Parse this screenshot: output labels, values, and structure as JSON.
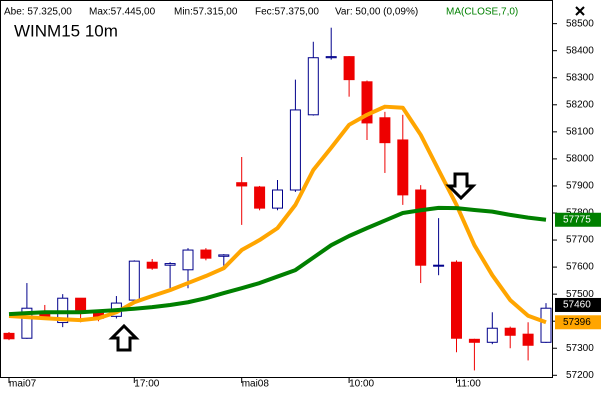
{
  "chart_data": {
    "type": "candlestick",
    "title": "WINM15 10m",
    "info": [
      "Abe: 57.325,00",
      "Max:57.445,00",
      "Min:57.315,00",
      "Fec:57.375,00",
      "Var: 50,00 (0,09%)"
    ],
    "categories": [
      "mai07",
      null,
      null,
      null,
      null,
      null,
      null,
      "17:00",
      null,
      null,
      null,
      null,
      null,
      "mai08",
      null,
      null,
      null,
      null,
      null,
      "10:00",
      null,
      null,
      null,
      null,
      null,
      "11:00",
      null,
      null,
      null,
      null,
      null
    ],
    "open": [
      57355,
      57337,
      57433,
      57395,
      57485,
      57430,
      57418,
      57478,
      57618,
      57607,
      57590,
      57663,
      57640,
      57912,
      57896,
      57818,
      57885,
      58163,
      58374,
      58378,
      58285,
      58152,
      58070,
      57885,
      57607,
      57618,
      57333,
      57322,
      57374,
      57352,
      57322
    ],
    "high": [
      57360,
      57541,
      57460,
      57500,
      57485,
      57440,
      57493,
      57625,
      57630,
      57618,
      57670,
      57670,
      57648,
      58007,
      57900,
      57922,
      58293,
      58433,
      58485,
      58380,
      58290,
      58174,
      58163,
      57903,
      57781,
      57625,
      57335,
      57433,
      57380,
      57396,
      57467
    ],
    "low": [
      57330,
      57335,
      57405,
      57378,
      57396,
      57400,
      57410,
      57470,
      57590,
      57515,
      57522,
      57625,
      57590,
      57756,
      57810,
      57810,
      57878,
      58160,
      58367,
      58230,
      58070,
      57948,
      57830,
      57541,
      57570,
      57285,
      57218,
      57315,
      57300,
      57255,
      57320
    ],
    "close": [
      57335,
      57448,
      57418,
      57485,
      57430,
      57411,
      57467,
      57622,
      57596,
      57613,
      57663,
      57633,
      57645,
      57900,
      57818,
      57885,
      58181,
      58374,
      58378,
      58293,
      58133,
      58060,
      57867,
      57607,
      57607,
      57337,
      57322,
      57374,
      57348,
      57311,
      57448
    ],
    "up_color": "#00008b",
    "down_color": "#ee0000",
    "lines": [
      {
        "color": "#ffa500",
        "values": [
          57419,
          57415,
          57411,
          57407,
          57404,
          57411,
          57433,
          57470,
          57493,
          57515,
          57541,
          57567,
          57596,
          57663,
          57700,
          57744,
          57830,
          57959,
          58041,
          58126,
          58163,
          58193,
          58189,
          58089,
          57959,
          57830,
          57681,
          57570,
          57478,
          57420,
          57396
        ]
      },
      {
        "name": "MA(CLOSE,7,0)",
        "color": "#008000",
        "values": [
          57426,
          57430,
          57433,
          57433,
          57433,
          57437,
          57441,
          57446,
          57452,
          57460,
          57470,
          57485,
          57504,
          57522,
          57541,
          57565,
          57589,
          57635,
          57681,
          57715,
          57744,
          57772,
          57800,
          57810,
          57819,
          57818,
          57811,
          57805,
          57793,
          57783,
          57775
        ]
      }
    ],
    "ylim": [
      57190,
      58580
    ],
    "yticks": [
      57200,
      57300,
      57400,
      57500,
      57600,
      57700,
      57800,
      57900,
      58000,
      58100,
      58200,
      58300,
      58400,
      58500
    ],
    "price_labels": [
      {
        "value": 57775,
        "color": "#008000",
        "text_color": "#ffffff"
      },
      {
        "value": 57460,
        "color": "#000000",
        "text_color": "#ffffff"
      },
      {
        "value": 57396,
        "color": "#ffa500",
        "text_color": "#000000"
      }
    ]
  }
}
